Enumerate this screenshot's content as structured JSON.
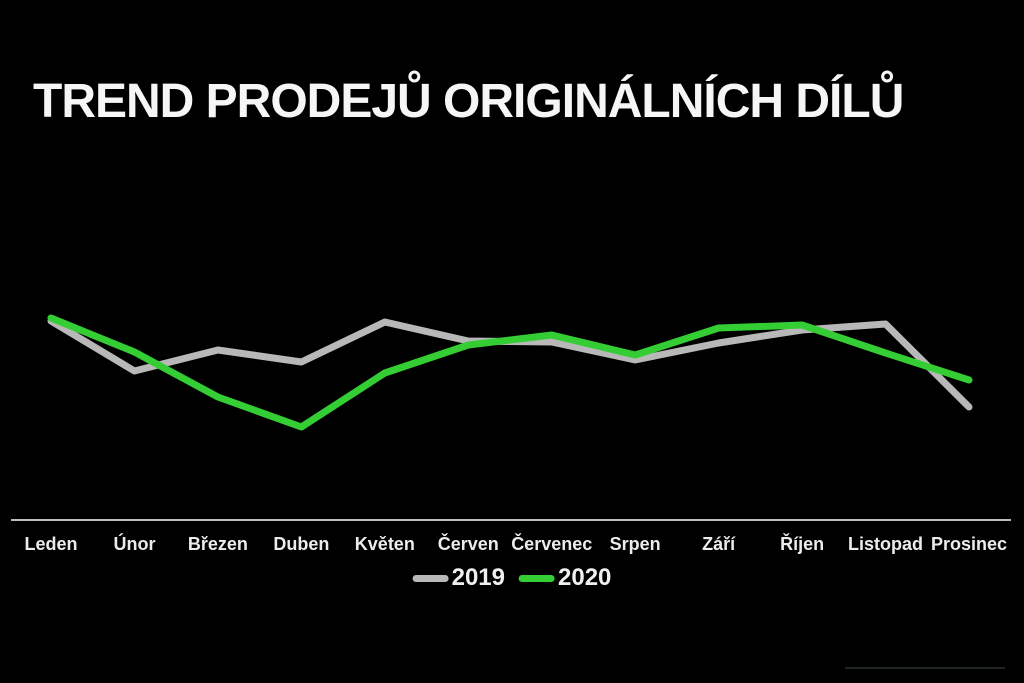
{
  "header": {
    "title": "TREND PRODEJŮ ORIGINÁLNÍCH DÍLŮ"
  },
  "chart_data": {
    "type": "line",
    "title": "TREND PRODEJŮ ORIGINÁLNÍCH DÍLŮ",
    "categories": [
      "Leden",
      "Únor",
      "Březen",
      "Duben",
      "Květen",
      "Červen",
      "Červenec",
      "Srpen",
      "Září",
      "Říjen",
      "Listopad",
      "Prosinec"
    ],
    "series": [
      {
        "name": "2019",
        "color": "#b8b8b8",
        "values": [
          199,
          149,
          170,
          158,
          198,
          179,
          178,
          160,
          177,
          190,
          196,
          113
        ]
      },
      {
        "name": "2020",
        "color": "#34cd34",
        "values": [
          202,
          168,
          123,
          93,
          147,
          175,
          185,
          165,
          192,
          195,
          167,
          140
        ]
      }
    ],
    "xlabel": "",
    "ylabel": "",
    "ylim": [
      0,
      220
    ],
    "y_axis_visible": false,
    "grid": false,
    "legend_position": "bottom-center",
    "axis_color": "#bdbdbd",
    "label_color": "#ececec",
    "background": "#000000"
  }
}
